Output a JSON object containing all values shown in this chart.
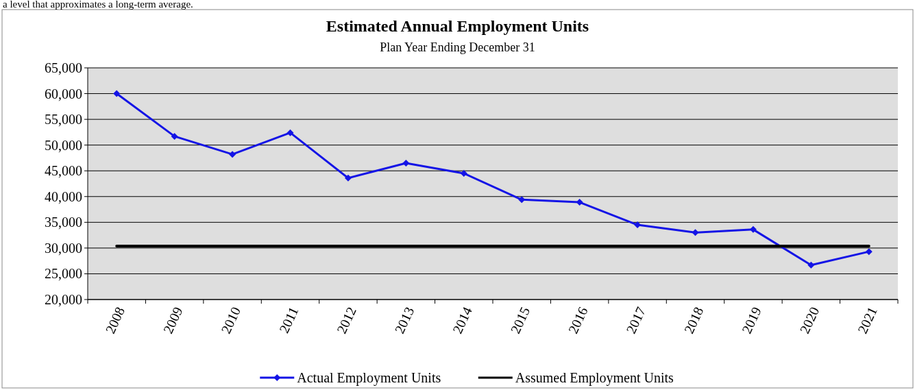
{
  "chart_data": {
    "type": "line",
    "title": "Estimated Annual Employment Units",
    "subtitle": "Plan Year Ending December 31",
    "annotations": [
      "a level that approximates a long-term average."
    ],
    "categories": [
      "2008",
      "2009",
      "2010",
      "2011",
      "2012",
      "2013",
      "2014",
      "2015",
      "2016",
      "2017",
      "2018",
      "2019",
      "2020",
      "2021"
    ],
    "series": [
      {
        "name": "Actual Employment Units",
        "color": "#1414e6",
        "marker": "diamond",
        "values": [
          60000,
          51700,
          48200,
          52400,
          43600,
          46500,
          44500,
          39400,
          38900,
          34500,
          33000,
          33600,
          26700,
          29300
        ]
      },
      {
        "name": "Assumed Employment Units",
        "color": "#000000",
        "marker": "none",
        "values": [
          30400,
          30400,
          30400,
          30400,
          30400,
          30400,
          30400,
          30400,
          30400,
          30400,
          30400,
          30400,
          30400,
          30400
        ]
      }
    ],
    "ylim": [
      20000,
      65000
    ],
    "yticks": [
      {
        "value": 20000,
        "label": "20,000"
      },
      {
        "value": 25000,
        "label": "25,000"
      },
      {
        "value": 30000,
        "label": "30,000"
      },
      {
        "value": 35000,
        "label": "35,000"
      },
      {
        "value": 40000,
        "label": "40,000"
      },
      {
        "value": 45000,
        "label": "45,000"
      },
      {
        "value": 50000,
        "label": "50,000"
      },
      {
        "value": 55000,
        "label": "55,000"
      },
      {
        "value": 60000,
        "label": "60,000"
      },
      {
        "value": 65000,
        "label": "65,000"
      }
    ],
    "grid": "y",
    "legend": "bottom"
  }
}
